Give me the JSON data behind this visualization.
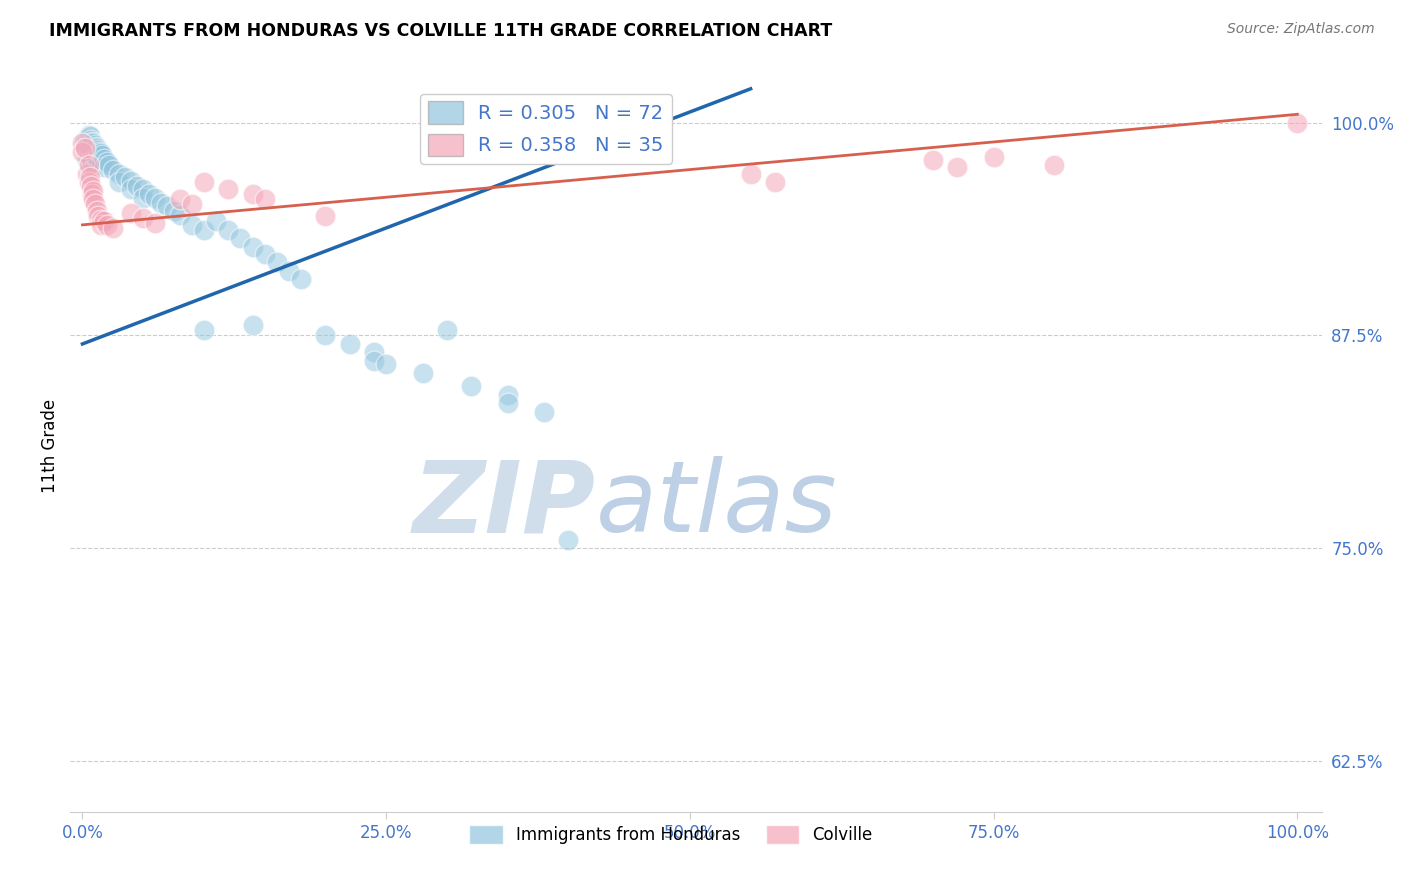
{
  "title": "IMMIGRANTS FROM HONDURAS VS COLVILLE 11TH GRADE CORRELATION CHART",
  "source": "Source: ZipAtlas.com",
  "ylabel": "11th Grade",
  "ytick_labels": [
    "100.0%",
    "87.5%",
    "75.0%",
    "62.5%"
  ],
  "ytick_positions": [
    1.0,
    0.875,
    0.75,
    0.625
  ],
  "xtick_positions": [
    0.0,
    0.25,
    0.5,
    0.75,
    1.0
  ],
  "xtick_labels": [
    "0.0%",
    "25.0%",
    "50.0%",
    "75.0%",
    "100.0%"
  ],
  "legend_blue_r": "0.305",
  "legend_blue_n": "72",
  "legend_pink_r": "0.358",
  "legend_pink_n": "35",
  "legend_blue_label": "Immigrants from Honduras",
  "legend_pink_label": "Colville",
  "blue_color": "#92c5de",
  "pink_color": "#f4a6b8",
  "blue_line_color": "#2166ac",
  "pink_line_color": "#d6604d",
  "blue_scatter": [
    [
      0.002,
      0.99
    ],
    [
      0.002,
      0.985
    ],
    [
      0.004,
      0.99
    ],
    [
      0.004,
      0.983
    ],
    [
      0.004,
      0.978
    ],
    [
      0.005,
      0.993
    ],
    [
      0.005,
      0.988
    ],
    [
      0.005,
      0.982
    ],
    [
      0.006,
      0.992
    ],
    [
      0.006,
      0.986
    ],
    [
      0.006,
      0.979
    ],
    [
      0.007,
      0.99
    ],
    [
      0.007,
      0.984
    ],
    [
      0.007,
      0.978
    ],
    [
      0.008,
      0.989
    ],
    [
      0.008,
      0.983
    ],
    [
      0.008,
      0.977
    ],
    [
      0.009,
      0.988
    ],
    [
      0.009,
      0.982
    ],
    [
      0.01,
      0.987
    ],
    [
      0.01,
      0.981
    ],
    [
      0.01,
      0.975
    ],
    [
      0.011,
      0.986
    ],
    [
      0.011,
      0.98
    ],
    [
      0.012,
      0.985
    ],
    [
      0.012,
      0.979
    ],
    [
      0.013,
      0.984
    ],
    [
      0.013,
      0.978
    ],
    [
      0.014,
      0.983
    ],
    [
      0.015,
      0.982
    ],
    [
      0.015,
      0.976
    ],
    [
      0.016,
      0.981
    ],
    [
      0.018,
      0.979
    ],
    [
      0.018,
      0.974
    ],
    [
      0.02,
      0.977
    ],
    [
      0.022,
      0.975
    ],
    [
      0.025,
      0.972
    ],
    [
      0.03,
      0.97
    ],
    [
      0.03,
      0.965
    ],
    [
      0.035,
      0.968
    ],
    [
      0.04,
      0.966
    ],
    [
      0.04,
      0.961
    ],
    [
      0.045,
      0.963
    ],
    [
      0.05,
      0.961
    ],
    [
      0.05,
      0.956
    ],
    [
      0.055,
      0.958
    ],
    [
      0.06,
      0.956
    ],
    [
      0.065,
      0.953
    ],
    [
      0.07,
      0.951
    ],
    [
      0.075,
      0.948
    ],
    [
      0.08,
      0.946
    ],
    [
      0.09,
      0.94
    ],
    [
      0.1,
      0.937
    ],
    [
      0.11,
      0.942
    ],
    [
      0.12,
      0.937
    ],
    [
      0.13,
      0.932
    ],
    [
      0.14,
      0.927
    ],
    [
      0.14,
      0.881
    ],
    [
      0.15,
      0.923
    ],
    [
      0.16,
      0.918
    ],
    [
      0.17,
      0.913
    ],
    [
      0.18,
      0.908
    ],
    [
      0.2,
      0.875
    ],
    [
      0.22,
      0.87
    ],
    [
      0.24,
      0.865
    ],
    [
      0.24,
      0.86
    ],
    [
      0.25,
      0.858
    ],
    [
      0.28,
      0.853
    ],
    [
      0.3,
      0.878
    ],
    [
      0.32,
      0.845
    ],
    [
      0.35,
      0.84
    ],
    [
      0.35,
      0.835
    ],
    [
      0.38,
      0.83
    ],
    [
      0.4,
      0.755
    ],
    [
      0.1,
      0.878
    ]
  ],
  "pink_scatter": [
    [
      0.0,
      0.988
    ],
    [
      0.0,
      0.983
    ],
    [
      0.002,
      0.985
    ],
    [
      0.004,
      0.97
    ],
    [
      0.005,
      0.975
    ],
    [
      0.005,
      0.965
    ],
    [
      0.006,
      0.968
    ],
    [
      0.007,
      0.963
    ],
    [
      0.008,
      0.958
    ],
    [
      0.009,
      0.96
    ],
    [
      0.009,
      0.955
    ],
    [
      0.01,
      0.952
    ],
    [
      0.012,
      0.948
    ],
    [
      0.013,
      0.945
    ],
    [
      0.015,
      0.943
    ],
    [
      0.015,
      0.94
    ],
    [
      0.018,
      0.942
    ],
    [
      0.02,
      0.94
    ],
    [
      0.025,
      0.938
    ],
    [
      0.04,
      0.947
    ],
    [
      0.05,
      0.944
    ],
    [
      0.06,
      0.941
    ],
    [
      0.08,
      0.955
    ],
    [
      0.09,
      0.952
    ],
    [
      0.1,
      0.965
    ],
    [
      0.12,
      0.961
    ],
    [
      0.14,
      0.958
    ],
    [
      0.15,
      0.955
    ],
    [
      0.2,
      0.945
    ],
    [
      0.55,
      0.97
    ],
    [
      0.57,
      0.965
    ],
    [
      0.7,
      0.978
    ],
    [
      0.72,
      0.974
    ],
    [
      0.75,
      0.98
    ],
    [
      0.8,
      0.975
    ],
    [
      1.0,
      1.0
    ]
  ],
  "blue_line_x": [
    0.0,
    0.55
  ],
  "blue_line_y": [
    0.87,
    1.02
  ],
  "pink_line_x": [
    0.0,
    1.0
  ],
  "pink_line_y": [
    0.94,
    1.005
  ],
  "xlim": [
    -0.01,
    1.02
  ],
  "ylim": [
    0.595,
    1.025
  ],
  "watermark_zip": "ZIP",
  "watermark_atlas": "atlas",
  "background_color": "#ffffff",
  "grid_color": "#cccccc"
}
